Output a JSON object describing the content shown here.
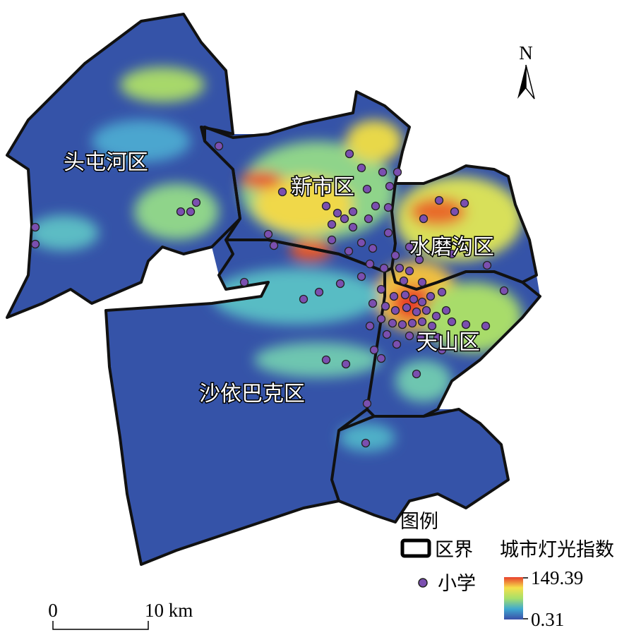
{
  "map": {
    "north": "N",
    "districts": [
      "头屯河区",
      "新市区",
      "水磨沟区",
      "天山区",
      "沙依巴克区"
    ],
    "legend": {
      "title": "图例",
      "boundary": "区界",
      "light_index": "城市灯光指数",
      "school": "小学",
      "max": 149.39,
      "min": 0.31
    },
    "scale_bar": {
      "start": 0,
      "end": "10 km"
    }
  }
}
